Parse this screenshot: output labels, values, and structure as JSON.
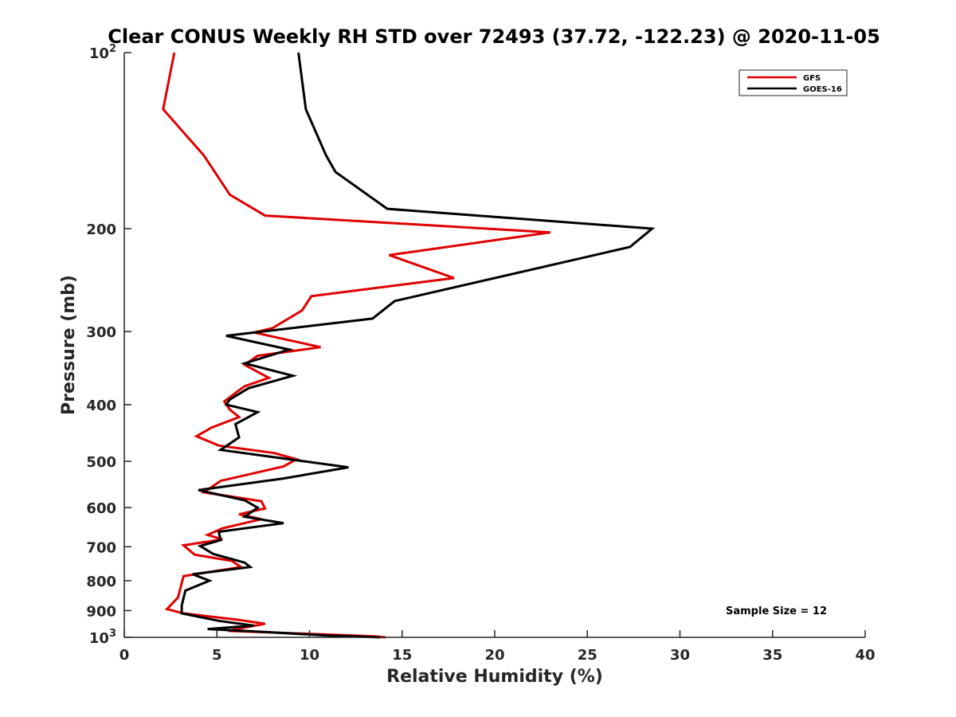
{
  "chart_data": {
    "type": "line",
    "title": "Clear CONUS Weekly RH STD over 72493 (37.72, -122.23) @ 2020-11-05",
    "xlabel": "Relative Humidity (%)",
    "ylabel": "Pressure (mb)",
    "xlim": [
      0,
      40
    ],
    "ylim": [
      100,
      1000
    ],
    "y_scale": "log",
    "y_reversed": true,
    "x_ticks": [
      "0",
      "5",
      "10",
      "15",
      "20",
      "25",
      "30",
      "35",
      "40"
    ],
    "y_ticks": [
      {
        "value": 100,
        "base": "10",
        "exp": "2"
      },
      {
        "value": 200,
        "label": "200"
      },
      {
        "value": 300,
        "label": "300"
      },
      {
        "value": 400,
        "label": "400"
      },
      {
        "value": 500,
        "label": "500"
      },
      {
        "value": 600,
        "label": "600"
      },
      {
        "value": 700,
        "label": "700"
      },
      {
        "value": 800,
        "label": "800"
      },
      {
        "value": 900,
        "label": "900"
      },
      {
        "value": 1000,
        "base": "10",
        "exp": "3"
      }
    ],
    "grid": false,
    "legend_position": "top-right",
    "annotation": "Sample Size = 12",
    "series": [
      {
        "name": "GFS",
        "color": "#e00000",
        "points": [
          [
            2.7,
            100
          ],
          [
            2.1,
            125
          ],
          [
            4.3,
            150
          ],
          [
            5.7,
            175
          ],
          [
            7.6,
            190
          ],
          [
            23,
            203
          ],
          [
            14.3,
            222
          ],
          [
            17.8,
            243
          ],
          [
            10.1,
            261
          ],
          [
            9.6,
            276
          ],
          [
            8,
            296
          ],
          [
            7,
            301
          ],
          [
            10.6,
            319
          ],
          [
            7.2,
            330
          ],
          [
            6.5,
            342
          ],
          [
            7.8,
            360
          ],
          [
            6.5,
            372
          ],
          [
            6.1,
            380
          ],
          [
            5.4,
            395
          ],
          [
            5.7,
            408
          ],
          [
            6.2,
            420
          ],
          [
            4.7,
            438
          ],
          [
            3.9,
            453
          ],
          [
            5.1,
            470
          ],
          [
            8.1,
            484
          ],
          [
            9.3,
            496
          ],
          [
            8.6,
            510
          ],
          [
            5.2,
            540
          ],
          [
            4.3,
            565
          ],
          [
            7.4,
            585
          ],
          [
            7.6,
            602
          ],
          [
            6.2,
            616
          ],
          [
            7.4,
            628
          ],
          [
            5.3,
            651
          ],
          [
            4.5,
            668
          ],
          [
            5.3,
            680
          ],
          [
            3.2,
            696
          ],
          [
            3.8,
            722
          ],
          [
            5.8,
            740
          ],
          [
            6.3,
            758
          ],
          [
            3.2,
            786
          ],
          [
            2.9,
            855
          ],
          [
            2.3,
            895
          ],
          [
            3.2,
            910
          ],
          [
            6.1,
            933
          ],
          [
            7.6,
            948
          ],
          [
            6.8,
            958
          ],
          [
            5.6,
            975
          ],
          [
            9.5,
            985
          ],
          [
            13.5,
            996
          ],
          [
            14.1,
            1000
          ]
        ]
      },
      {
        "name": "GOES-16",
        "color": "#000000",
        "points": [
          [
            9.4,
            100
          ],
          [
            9.8,
            125
          ],
          [
            10.9,
            150
          ],
          [
            11.4,
            160
          ],
          [
            14.2,
            185
          ],
          [
            28.5,
            200
          ],
          [
            27.3,
            215
          ],
          [
            14.6,
            266
          ],
          [
            13.4,
            285
          ],
          [
            5.5,
            305
          ],
          [
            8.9,
            322
          ],
          [
            6.5,
            340
          ],
          [
            9.1,
            357
          ],
          [
            6.7,
            375
          ],
          [
            5.7,
            392
          ],
          [
            5.5,
            400
          ],
          [
            7.2,
            412
          ],
          [
            6,
            432
          ],
          [
            6.2,
            455
          ],
          [
            5.2,
            478
          ],
          [
            12.1,
            512
          ],
          [
            8.6,
            535
          ],
          [
            4,
            560
          ],
          [
            6.5,
            583
          ],
          [
            7.2,
            600
          ],
          [
            6.5,
            622
          ],
          [
            8.6,
            638
          ],
          [
            5.1,
            660
          ],
          [
            5.2,
            682
          ],
          [
            4.1,
            698
          ],
          [
            4.8,
            720
          ],
          [
            6.5,
            745
          ],
          [
            6.8,
            758
          ],
          [
            3.7,
            780
          ],
          [
            4.6,
            800
          ],
          [
            3.3,
            832
          ],
          [
            3.1,
            882
          ],
          [
            3.1,
            910
          ],
          [
            5.1,
            937
          ],
          [
            7,
            955
          ],
          [
            4.5,
            968
          ],
          [
            7.6,
            979
          ],
          [
            11,
            993
          ],
          [
            13.8,
            1000
          ]
        ]
      }
    ]
  }
}
